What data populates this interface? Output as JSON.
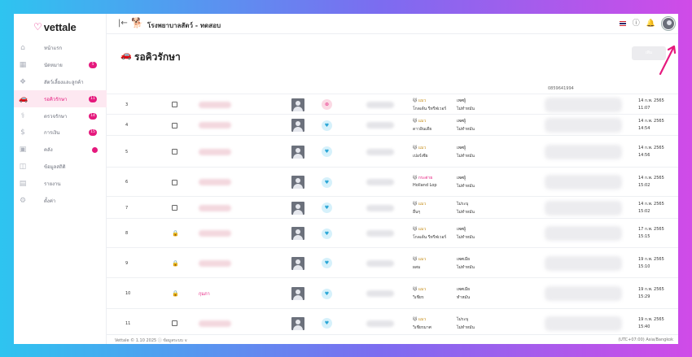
{
  "app": {
    "logo": "vettale"
  },
  "sidebar": {
    "items": [
      {
        "label": "หน้าแรก",
        "icon": "home-icon",
        "badge": ""
      },
      {
        "label": "นัดหมาย",
        "icon": "calendar-icon",
        "badge": "5"
      },
      {
        "label": "สัตว์เลี้ยงและลูกค้า",
        "icon": "pet-icon",
        "badge": ""
      },
      {
        "label": "รอคิวรักษา",
        "icon": "car-icon",
        "badge": "11"
      },
      {
        "label": "ตรวจรักษา",
        "icon": "stethoscope-icon",
        "badge": "14"
      },
      {
        "label": "การเงิน",
        "icon": "money-icon",
        "badge": "15"
      },
      {
        "label": "คลัง",
        "icon": "box-icon",
        "badge": "dot"
      },
      {
        "label": "ข้อมูลสถิติ",
        "icon": "stats-icon",
        "badge": ""
      },
      {
        "label": "รายงาน",
        "icon": "report-icon",
        "badge": ""
      },
      {
        "label": "ตั้งค่า",
        "icon": "gear-icon",
        "badge": ""
      }
    ],
    "active_index": 3
  },
  "topbar": {
    "clinic_name": "โรงพยาบาลสัตว์ - ทดสอบ"
  },
  "page": {
    "title": "รอคิวรักษา",
    "header_button": "เพิ่ม",
    "phone_partial": "0859641994"
  },
  "rows": [
    {
      "no": "3",
      "lock": false,
      "owner": "",
      "type": "pink",
      "species": "แมว",
      "species_color": "gold",
      "breed": "โกลเด้น รีทรีฟเวอร์",
      "sex": "เพศผู้",
      "neutered": "ไม่ทำหมัน",
      "date": "14 ก.พ. 2565",
      "time": "11:07"
    },
    {
      "no": "4",
      "lock": false,
      "owner": "",
      "type": "blue",
      "species": "แมว",
      "species_color": "gold",
      "breed": "ดาวอินเดีย",
      "sex": "เพศผู้",
      "neutered": "ไม่ทำหมัน",
      "date": "14 ก.พ. 2565",
      "time": "14:54"
    },
    {
      "no": "5",
      "lock": false,
      "owner": "",
      "type": "blue",
      "species": "แมว",
      "species_color": "gold",
      "breed": "เปอร์เซีย",
      "sex": "เพศผู้",
      "neutered": "ไม่ทำหมัน",
      "date": "14 ก.พ. 2565",
      "time": "14:56"
    },
    {
      "no": "6",
      "lock": false,
      "owner": "",
      "type": "blue",
      "species": "กระต่าย",
      "species_color": "red",
      "breed": "Holland Lop",
      "sex": "เพศผู้",
      "neutered": "ไม่ทำหมัน",
      "date": "14 ก.พ. 2565",
      "time": "15:02"
    },
    {
      "no": "7",
      "lock": false,
      "owner": "",
      "type": "blue",
      "species": "แมว",
      "species_color": "gold",
      "breed": "อื่นๆ",
      "sex": "ไม่ระบุ",
      "neutered": "ไม่ทำหมัน",
      "date": "14 ก.พ. 2565",
      "time": "15:02"
    },
    {
      "no": "8",
      "lock": true,
      "owner": "",
      "type": "blue",
      "species": "แมว",
      "species_color": "gold",
      "breed": "โกลเด้น รีทรีฟเวอร์",
      "sex": "เพศผู้",
      "neutered": "ไม่ทำหมัน",
      "date": "17 ก.พ. 2565",
      "time": "15:15"
    },
    {
      "no": "9",
      "lock": true,
      "owner": "",
      "type": "blue",
      "species": "แมว",
      "species_color": "gold",
      "breed": "ผสม",
      "sex": "เพศเมีย",
      "neutered": "ไม่ทำหมัน",
      "date": "19 ก.พ. 2565",
      "time": "15:10"
    },
    {
      "no": "10",
      "lock": true,
      "owner": "กุมภา",
      "type": "blue",
      "species": "แมว",
      "species_color": "gold",
      "breed": "วิเชียร",
      "sex": "เพศเมีย",
      "neutered": "ทำหมัน",
      "date": "19 ก.พ. 2565",
      "time": "15:29"
    },
    {
      "no": "11",
      "lock": false,
      "owner": "",
      "type": "blue",
      "species": "แมว",
      "species_color": "gold",
      "breed": "วิเชียรมาศ",
      "sex": "ไม่ระบุ",
      "neutered": "ไม่ทำหมัน",
      "date": "19 ก.พ. 2565",
      "time": "15:40"
    }
  ],
  "footer": {
    "left": "Vettale © 1.10 2025   ⓘ ข้อมูลระบบ ∨",
    "right": "(UTC+07:00) Asia/Bangkok"
  },
  "colors": {
    "accent": "#e5197d",
    "blue_icon": "#2aa6d6"
  }
}
